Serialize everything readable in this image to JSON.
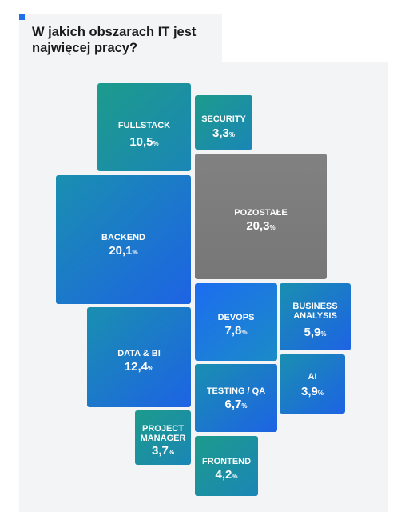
{
  "title": "W jakich obszarach IT jest najwięcej pracy?",
  "colors": {
    "accent": "#1f6fe8",
    "teal": "#1a9a8c",
    "blue": "#1a72e0",
    "gray": "#7d7d7d",
    "panel": "#f3f4f5"
  },
  "chart_data": {
    "type": "treemap",
    "unit": "%",
    "items": [
      {
        "label": "FULLSTACK",
        "value": 10.5,
        "display": "10,5"
      },
      {
        "label": "SECURITY",
        "value": 3.3,
        "display": "3,3"
      },
      {
        "label": "POZOSTAŁE",
        "value": 20.3,
        "display": "20,3"
      },
      {
        "label": "BACKEND",
        "value": 20.1,
        "display": "20,1"
      },
      {
        "label": "DEVOPS",
        "value": 7.8,
        "display": "7,8"
      },
      {
        "label": "BUSINESS ANALYSIS",
        "value": 5.9,
        "display": "5,9"
      },
      {
        "label": "DATA & BI",
        "value": 12.4,
        "display": "12,4"
      },
      {
        "label": "TESTING / QA",
        "value": 6.7,
        "display": "6,7"
      },
      {
        "label": "AI",
        "value": 3.9,
        "display": "3,9"
      },
      {
        "label": "PROJECT MANAGER",
        "value": 3.7,
        "display": "3,7"
      },
      {
        "label": "FRONTEND",
        "value": 4.2,
        "display": "4,2"
      }
    ]
  }
}
